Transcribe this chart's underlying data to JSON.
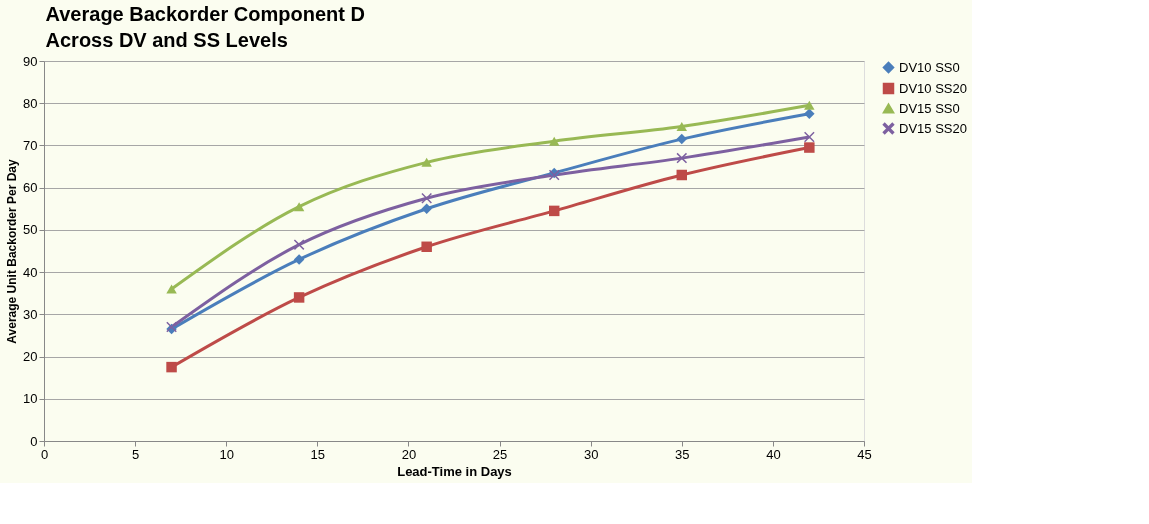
{
  "chart_data": {
    "type": "line",
    "title": "Average Backorder Component D\nAcross DV and SS Levels",
    "xlabel": "Lead-Time in Days",
    "ylabel": "Average Unit Backorder  Per Day",
    "x": [
      7,
      14,
      21,
      28,
      35,
      42
    ],
    "series": [
      {
        "name": "DV10 SS0",
        "color": "#4a7ebb",
        "marker": "diamond",
        "values": [
          26.5,
          43,
          55,
          63.5,
          71.5,
          77.5
        ]
      },
      {
        "name": "DV10 SS20",
        "color": "#be4b48",
        "marker": "square",
        "values": [
          17.5,
          34,
          46,
          54.5,
          63,
          69.5
        ]
      },
      {
        "name": "DV15 SS0",
        "color": "#98b954",
        "marker": "triangle",
        "values": [
          36,
          55.5,
          66,
          71,
          74.5,
          79.5
        ]
      },
      {
        "name": "DV15 SS20",
        "color": "#7d60a0",
        "marker": "cross",
        "values": [
          27,
          46.5,
          57.5,
          63,
          67,
          72
        ]
      }
    ],
    "xlim": [
      0,
      45
    ],
    "xticks": [
      0,
      5,
      10,
      15,
      20,
      25,
      30,
      35,
      40,
      45
    ],
    "ylim": [
      0,
      90
    ],
    "yticks": [
      0,
      10,
      20,
      30,
      40,
      50,
      60,
      70,
      80,
      90
    ],
    "grid": "y",
    "legend": "right",
    "line_style": "solid"
  }
}
